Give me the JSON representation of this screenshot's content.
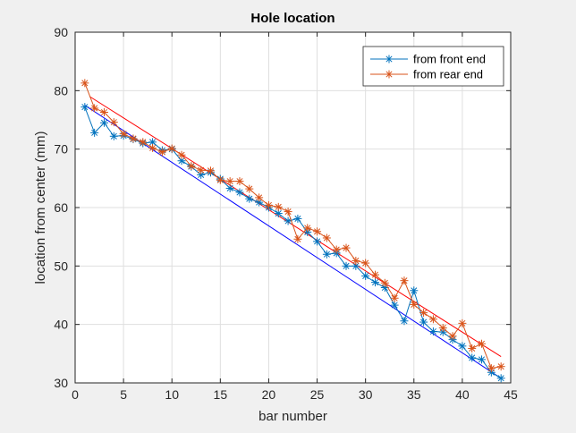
{
  "chart_data": {
    "type": "line",
    "title": "Hole location",
    "xlabel": "bar number",
    "ylabel": "location from center (mm)",
    "xlim": [
      0,
      45
    ],
    "ylim": [
      30,
      90
    ],
    "xticks": [
      0,
      5,
      10,
      15,
      20,
      25,
      30,
      35,
      40,
      45
    ],
    "yticks": [
      30,
      40,
      50,
      60,
      70,
      80,
      90
    ],
    "grid": true,
    "legend_position": "top-right",
    "x": [
      1,
      2,
      3,
      4,
      5,
      6,
      7,
      8,
      9,
      10,
      11,
      12,
      13,
      14,
      15,
      16,
      17,
      18,
      19,
      20,
      21,
      22,
      23,
      24,
      25,
      26,
      27,
      28,
      29,
      30,
      31,
      32,
      33,
      34,
      35,
      36,
      37,
      38,
      39,
      40,
      41,
      42,
      43,
      44
    ],
    "series": [
      {
        "name": "from front end",
        "color": "#0072bd",
        "marker": "asterisk",
        "values": [
          77.2,
          72.8,
          74.5,
          72.2,
          72.3,
          71.7,
          71.0,
          71.2,
          69.8,
          70.0,
          68.0,
          67.0,
          65.6,
          66.0,
          64.9,
          63.3,
          62.6,
          61.5,
          60.9,
          60.0,
          59.0,
          57.7,
          58.1,
          55.8,
          54.2,
          52.0,
          52.2,
          50.0,
          50.0,
          48.3,
          47.2,
          46.3,
          43.3,
          40.6,
          45.8,
          40.4,
          38.8,
          38.7,
          37.4,
          36.3,
          34.3,
          34.0,
          31.8,
          30.8
        ]
      },
      {
        "name": "from rear end",
        "color": "#d95319",
        "marker": "asterisk",
        "values": [
          81.3,
          77.0,
          76.3,
          74.6,
          72.6,
          71.8,
          71.2,
          70.2,
          69.5,
          70.1,
          69.0,
          67.1,
          66.4,
          66.3,
          64.7,
          64.5,
          64.5,
          63.2,
          61.7,
          60.4,
          60.1,
          59.3,
          54.6,
          56.5,
          55.9,
          54.8,
          52.8,
          53.1,
          50.9,
          50.5,
          48.5,
          47.1,
          44.5,
          47.5,
          43.4,
          42.0,
          40.9,
          39.4,
          38.0,
          40.2,
          35.9,
          36.7,
          32.5,
          32.8
        ]
      }
    ],
    "fit_lines": [
      {
        "color": "#0000ff",
        "x": [
          1,
          44
        ],
        "y": [
          77.5,
          30.8
        ]
      },
      {
        "color": "#ff0000",
        "x": [
          1.5,
          44
        ],
        "y": [
          79.0,
          34.5
        ]
      }
    ]
  }
}
